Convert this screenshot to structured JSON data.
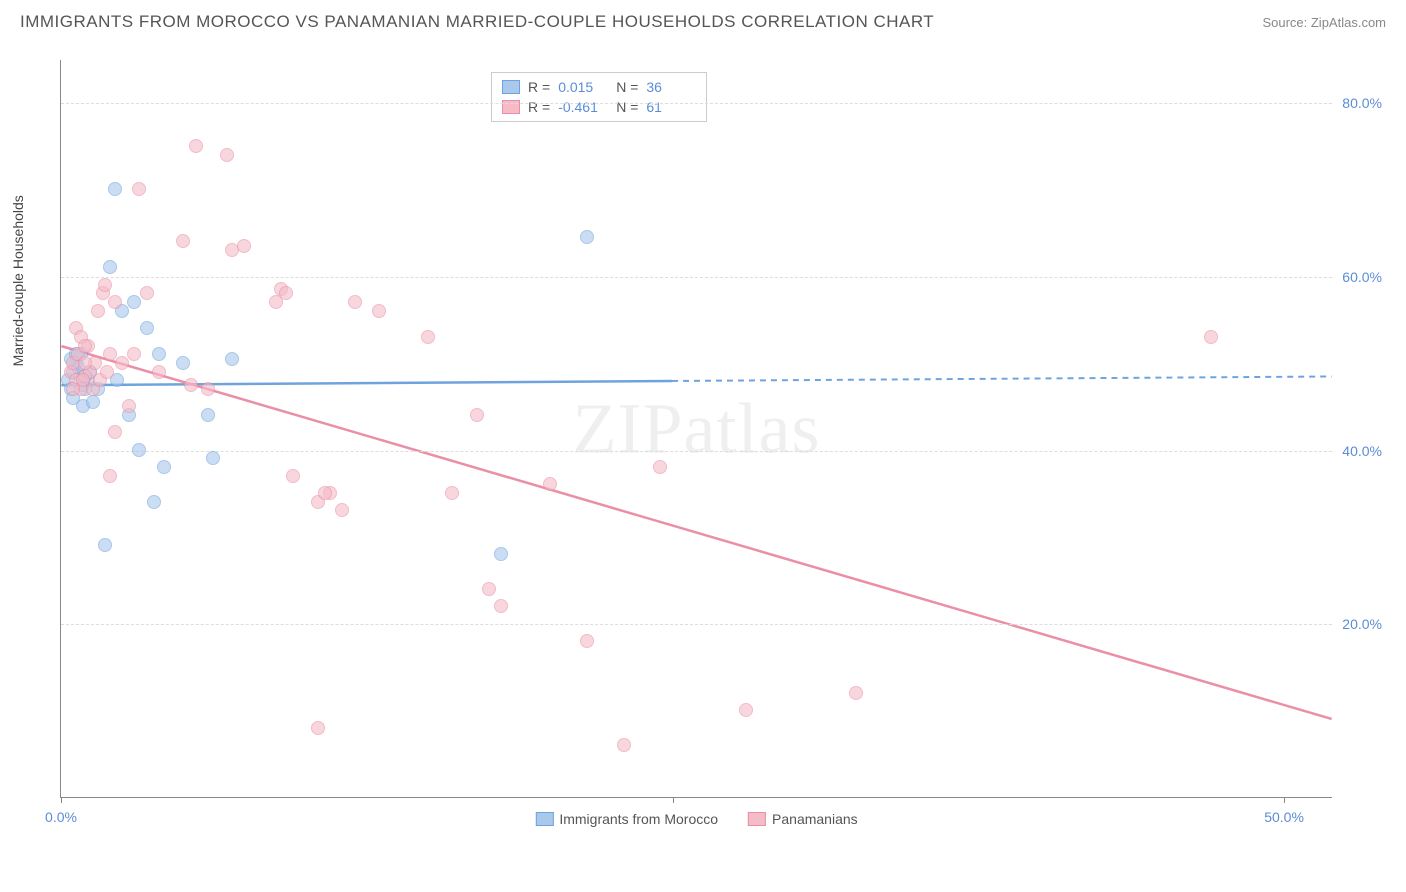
{
  "header": {
    "title": "IMMIGRANTS FROM MOROCCO VS PANAMANIAN MARRIED-COUPLE HOUSEHOLDS CORRELATION CHART",
    "source": "Source: ZipAtlas.com"
  },
  "chart": {
    "type": "scatter",
    "watermark": "ZIPatlas",
    "y_axis": {
      "title": "Married-couple Households",
      "min": 0,
      "max": 85,
      "ticks": [
        20,
        40,
        60,
        80
      ],
      "tick_labels": [
        "20.0%",
        "40.0%",
        "60.0%",
        "80.0%"
      ],
      "label_color": "#5b8dd6"
    },
    "x_axis": {
      "min": 0,
      "max": 52,
      "ticks": [
        0,
        25,
        50
      ],
      "tick_labels": [
        "0.0%",
        "",
        "50.0%"
      ],
      "label_color": "#5b8dd6"
    },
    "series": [
      {
        "name": "Immigrants from Morocco",
        "color_fill": "#a8c8ec",
        "color_border": "#6fa3dd",
        "R": "0.015",
        "N": "36",
        "trend": {
          "y_at_x0": 47.5,
          "y_at_xmax": 48.5,
          "solid_until_x": 25
        },
        "points": [
          [
            0.3,
            48
          ],
          [
            0.5,
            49
          ],
          [
            0.4,
            47
          ],
          [
            0.6,
            50
          ],
          [
            0.8,
            48.5
          ],
          [
            0.5,
            46
          ],
          [
            0.7,
            49.5
          ],
          [
            0.4,
            50.5
          ],
          [
            1.0,
            47
          ],
          [
            1.2,
            49
          ],
          [
            0.9,
            45
          ],
          [
            1.1,
            48
          ],
          [
            0.8,
            51
          ],
          [
            1.3,
            45.5
          ],
          [
            1.5,
            47
          ],
          [
            2.0,
            61
          ],
          [
            2.2,
            70
          ],
          [
            2.5,
            56
          ],
          [
            3.0,
            57
          ],
          [
            3.2,
            40
          ],
          [
            3.5,
            54
          ],
          [
            2.8,
            44
          ],
          [
            4.0,
            51
          ],
          [
            4.2,
            38
          ],
          [
            5.0,
            50
          ],
          [
            6.2,
            39
          ],
          [
            6.0,
            44
          ],
          [
            7.0,
            50.5
          ],
          [
            2.3,
            48
          ],
          [
            1.8,
            29
          ],
          [
            3.8,
            34
          ],
          [
            21.5,
            64.5
          ],
          [
            18.0,
            28
          ],
          [
            0.6,
            51
          ],
          [
            0.9,
            47.5
          ],
          [
            1.0,
            48.5
          ]
        ]
      },
      {
        "name": "Panamanians",
        "color_fill": "#f5bcc8",
        "color_border": "#ea8fa5",
        "R": "-0.461",
        "N": "61",
        "trend": {
          "y_at_x0": 52,
          "y_at_xmax": 9,
          "solid_until_x": 52
        },
        "points": [
          [
            0.4,
            49
          ],
          [
            0.6,
            48
          ],
          [
            0.5,
            50
          ],
          [
            0.8,
            47
          ],
          [
            1.0,
            48.5
          ],
          [
            0.7,
            51
          ],
          [
            1.2,
            49
          ],
          [
            0.9,
            48
          ],
          [
            1.1,
            52
          ],
          [
            1.4,
            50
          ],
          [
            1.3,
            47
          ],
          [
            0.6,
            54
          ],
          [
            0.8,
            53
          ],
          [
            1.0,
            52
          ],
          [
            1.7,
            58
          ],
          [
            1.5,
            56
          ],
          [
            2.2,
            57
          ],
          [
            2.0,
            51
          ],
          [
            1.8,
            59
          ],
          [
            2.5,
            50
          ],
          [
            2.0,
            37
          ],
          [
            2.2,
            42
          ],
          [
            2.8,
            45
          ],
          [
            3.2,
            70
          ],
          [
            3.5,
            58
          ],
          [
            5.0,
            64
          ],
          [
            5.5,
            75
          ],
          [
            6.8,
            74
          ],
          [
            6.0,
            47
          ],
          [
            7.0,
            63
          ],
          [
            7.5,
            63.5
          ],
          [
            8.8,
            57
          ],
          [
            9.0,
            58.5
          ],
          [
            9.2,
            58
          ],
          [
            9.5,
            37
          ],
          [
            11.0,
            35
          ],
          [
            11.5,
            33
          ],
          [
            13.0,
            56
          ],
          [
            15.0,
            53
          ],
          [
            16.0,
            35
          ],
          [
            17.0,
            44
          ],
          [
            20.0,
            36
          ],
          [
            18.0,
            22
          ],
          [
            17.5,
            24
          ],
          [
            21.5,
            18
          ],
          [
            24.5,
            38
          ],
          [
            23.0,
            6
          ],
          [
            28.0,
            10
          ],
          [
            32.5,
            12
          ],
          [
            47.0,
            53
          ],
          [
            10.5,
            8
          ],
          [
            5.3,
            47.5
          ],
          [
            1.6,
            48
          ],
          [
            0.5,
            47
          ],
          [
            3.0,
            51
          ],
          [
            1.9,
            49
          ],
          [
            1.0,
            50
          ],
          [
            10.5,
            34
          ],
          [
            10.8,
            35
          ],
          [
            12.0,
            57
          ],
          [
            4.0,
            49
          ]
        ]
      }
    ],
    "stats_box": {
      "rows": [
        {
          "swatch_fill": "#a8c8ec",
          "swatch_border": "#6fa3dd",
          "r_label": "R =",
          "r_value": "0.015",
          "n_label": "N =",
          "n_value": "36"
        },
        {
          "swatch_fill": "#f5bcc8",
          "swatch_border": "#ea8fa5",
          "r_label": "R =",
          "r_value": "-0.461",
          "n_label": "N =",
          "n_value": "61"
        }
      ]
    },
    "bottom_legend": [
      {
        "swatch_fill": "#a8c8ec",
        "swatch_border": "#6fa3dd",
        "label": "Immigrants from Morocco"
      },
      {
        "swatch_fill": "#f5bcc8",
        "swatch_border": "#ea8fa5",
        "label": "Panamanians"
      }
    ],
    "background_color": "#ffffff",
    "grid_color": "#dddddd",
    "axis_color": "#888888",
    "marker_radius": 7,
    "marker_opacity": 0.6
  }
}
